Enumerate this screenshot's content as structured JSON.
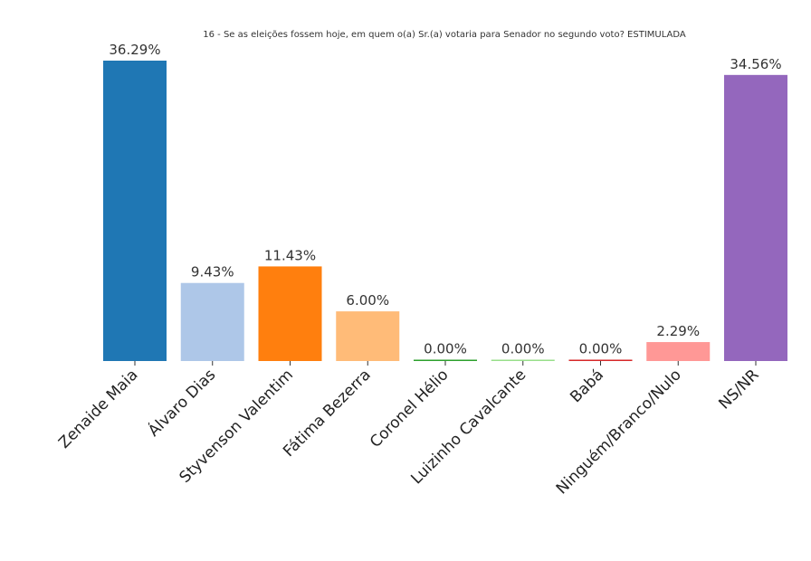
{
  "chart_data": {
    "type": "bar",
    "title": "16 - Se as eleições fossem hoje, em quem o(a) Sr.(a) votaria para Senador no segundo voto? ESTIMULADA",
    "xlabel": "",
    "ylabel": "",
    "ylim": [
      0,
      40
    ],
    "grid": false,
    "categories": [
      "Zenaide Maia",
      "Álvaro Dias",
      "Styvenson Valentim",
      "Fátima Bezerra",
      "Coronel Hélio",
      "Luizinho Cavalcante",
      "Babá",
      "Ninguém/Branco/Nulo",
      "NS/NR"
    ],
    "values": [
      36.29,
      9.43,
      11.43,
      6.0,
      0.0,
      0.0,
      0.0,
      2.29,
      34.56
    ],
    "value_labels": [
      "36.29%",
      "9.43%",
      "11.43%",
      "6.00%",
      "0.00%",
      "0.00%",
      "0.00%",
      "2.29%",
      "34.56%"
    ],
    "colors": [
      "#1f77b4",
      "#aec7e8",
      "#ff7f0e",
      "#ffbb78",
      "#2ca02c",
      "#98df8a",
      "#d62728",
      "#ff9896",
      "#9467bd"
    ]
  }
}
